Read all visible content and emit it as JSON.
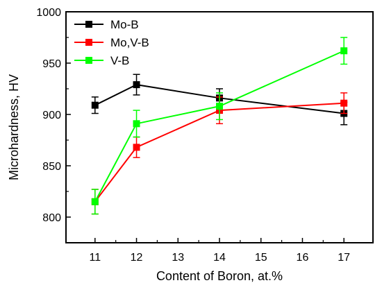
{
  "chart_data": {
    "type": "line",
    "title": "",
    "xlabel": "Content of Boron, at.%",
    "ylabel": "Microhardness, HV",
    "x_ticks": [
      11,
      12,
      13,
      14,
      15,
      16,
      17
    ],
    "y_ticks": [
      800,
      850,
      900,
      950,
      1000
    ],
    "xlim": [
      10.3,
      17.7
    ],
    "ylim": [
      775,
      1000
    ],
    "legend_position": "top-left",
    "series": [
      {
        "name": "Mo-B",
        "color": "#000000",
        "marker": "square",
        "points": [
          {
            "x": 11,
            "y": 909,
            "err": 8
          },
          {
            "x": 12,
            "y": 929,
            "err": 10
          },
          {
            "x": 14,
            "y": 916,
            "err": 9
          },
          {
            "x": 17,
            "y": 901,
            "err": 11
          }
        ]
      },
      {
        "name": "Mo,V-B",
        "color": "#ff0000",
        "marker": "square",
        "points": [
          {
            "x": 11,
            "y": 815,
            "err": 12
          },
          {
            "x": 12,
            "y": 868,
            "err": 10
          },
          {
            "x": 14,
            "y": 904,
            "err": 13
          },
          {
            "x": 17,
            "y": 911,
            "err": 10
          }
        ]
      },
      {
        "name": "V-B",
        "color": "#00ff00",
        "marker": "square",
        "points": [
          {
            "x": 11,
            "y": 815,
            "err": 12
          },
          {
            "x": 12,
            "y": 891,
            "err": 13
          },
          {
            "x": 14,
            "y": 908,
            "err": 13
          },
          {
            "x": 17,
            "y": 962,
            "err": 13
          }
        ]
      }
    ]
  }
}
